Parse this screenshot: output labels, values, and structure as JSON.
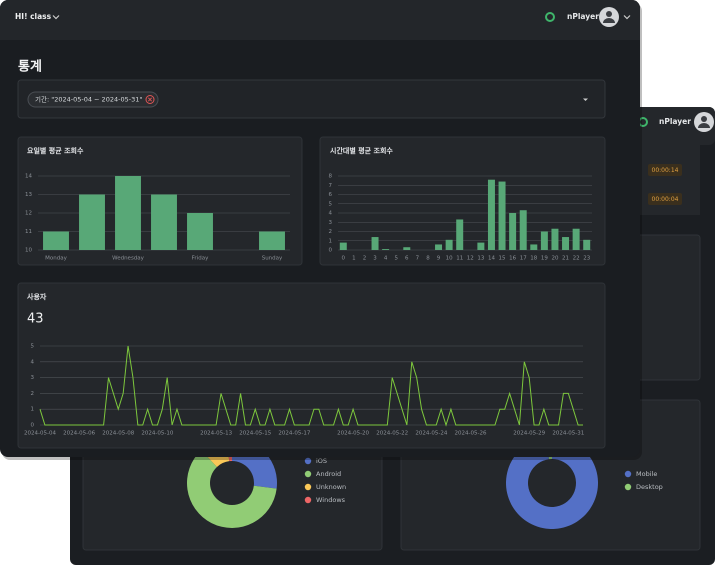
{
  "front": {
    "brand": "HI! class",
    "user": "nPlayer",
    "page_title": "통계",
    "filter_chip": "기간: \"2024-05-04 ~ 2024-05-31\""
  },
  "back": {
    "user": "nPlayer",
    "badges": [
      "00:00:14",
      "00:00:04"
    ]
  },
  "chart_data": [
    {
      "type": "bar",
      "title": "요일별 평균 조회수",
      "categories": [
        "Monday",
        null,
        "Wednesday",
        null,
        "Friday",
        null,
        "Sunday"
      ],
      "values": [
        11,
        13,
        14,
        13,
        12,
        10,
        11
      ],
      "color": "#58a877",
      "ylim": [
        10,
        14
      ],
      "yticks": [
        10,
        11,
        12,
        13,
        14
      ],
      "grid": true
    },
    {
      "type": "bar",
      "title": "시간대별 평균 조회수",
      "categories": [
        "0",
        "1",
        "2",
        "3",
        "4",
        "5",
        "6",
        "7",
        "8",
        "9",
        "10",
        "11",
        "12",
        "13",
        "14",
        "15",
        "16",
        "17",
        "18",
        "19",
        "20",
        "21",
        "22",
        "23"
      ],
      "values": [
        0.8,
        0,
        0,
        1.4,
        0.1,
        0,
        0.3,
        0,
        0,
        0.6,
        1.1,
        3.3,
        0,
        0.8,
        7.6,
        7.4,
        4,
        4.3,
        0.6,
        2,
        2.3,
        1.4,
        2.3,
        1.1
      ],
      "color": "#58a877",
      "ylim": [
        0,
        8
      ],
      "yticks": [
        0,
        1,
        2,
        3,
        4,
        5,
        6,
        7,
        8
      ],
      "grid": true
    },
    {
      "type": "line",
      "title": "사용자",
      "summary": 43,
      "categories": [
        "2024-05-04",
        null,
        null,
        null,
        null,
        null,
        null,
        null,
        "2024-05-06",
        null,
        null,
        null,
        null,
        null,
        null,
        null,
        "2024-05-08",
        null,
        null,
        null,
        null,
        null,
        null,
        null,
        "2024-05-10",
        null,
        null,
        null,
        null,
        null,
        null,
        null,
        null,
        null,
        null,
        null,
        "2024-05-13",
        null,
        null,
        null,
        null,
        null,
        null,
        null,
        "2024-05-15",
        null,
        null,
        null,
        null,
        null,
        null,
        null,
        "2024-05-17",
        null,
        null,
        null,
        null,
        null,
        null,
        null,
        null,
        null,
        null,
        null,
        "2024-05-20",
        null,
        null,
        null,
        null,
        null,
        null,
        null,
        "2024-05-22",
        null,
        null,
        null,
        null,
        null,
        null,
        null,
        "2024-05-24",
        null,
        null,
        null,
        null,
        null,
        null,
        null,
        "2024-05-26",
        null,
        null,
        null,
        null,
        null,
        null,
        null,
        null,
        null,
        null,
        null,
        "2024-05-29",
        null,
        null,
        null,
        null,
        null,
        null,
        null,
        "2024-05-31",
        null,
        null,
        null
      ],
      "values": [
        1,
        0,
        0,
        0,
        0,
        0,
        0,
        0,
        0,
        0,
        0,
        0,
        0,
        0,
        3,
        2,
        1,
        2,
        5,
        3,
        0,
        0,
        1,
        0,
        0,
        1,
        3,
        0,
        1,
        0,
        0,
        0,
        0,
        0,
        0,
        0,
        0,
        2,
        1,
        0,
        0,
        2,
        0,
        0,
        1,
        0,
        0,
        1,
        0,
        0,
        0,
        1,
        0,
        0,
        0,
        0,
        1,
        1,
        0,
        0,
        0,
        1,
        0,
        0,
        1,
        0,
        0,
        0,
        0,
        0,
        0,
        0,
        3,
        2,
        1,
        0,
        4,
        3,
        1,
        0,
        0,
        0,
        1,
        0,
        1,
        0,
        0,
        0,
        0,
        0,
        0,
        0,
        0,
        0,
        1,
        1,
        2,
        1,
        0,
        4,
        3,
        0,
        0,
        1,
        0,
        0,
        0,
        2,
        2,
        1,
        0,
        0
      ],
      "color": "#7dc73d",
      "ylim": [
        0,
        5
      ],
      "yticks": [
        0,
        1,
        2,
        3,
        4,
        5
      ],
      "grid": true
    },
    {
      "type": "pie",
      "categories": [
        "iOS",
        "Android",
        "Unknown",
        "Windows"
      ],
      "values": [
        27,
        61,
        10,
        2
      ],
      "colors": [
        "#5470c6",
        "#91cc75",
        "#fac858",
        "#ee6666"
      ]
    },
    {
      "type": "pie",
      "categories": [
        "Mobile",
        "Desktop"
      ],
      "values": [
        98,
        2
      ],
      "colors": [
        "#5470c6",
        "#91cc75"
      ]
    }
  ]
}
